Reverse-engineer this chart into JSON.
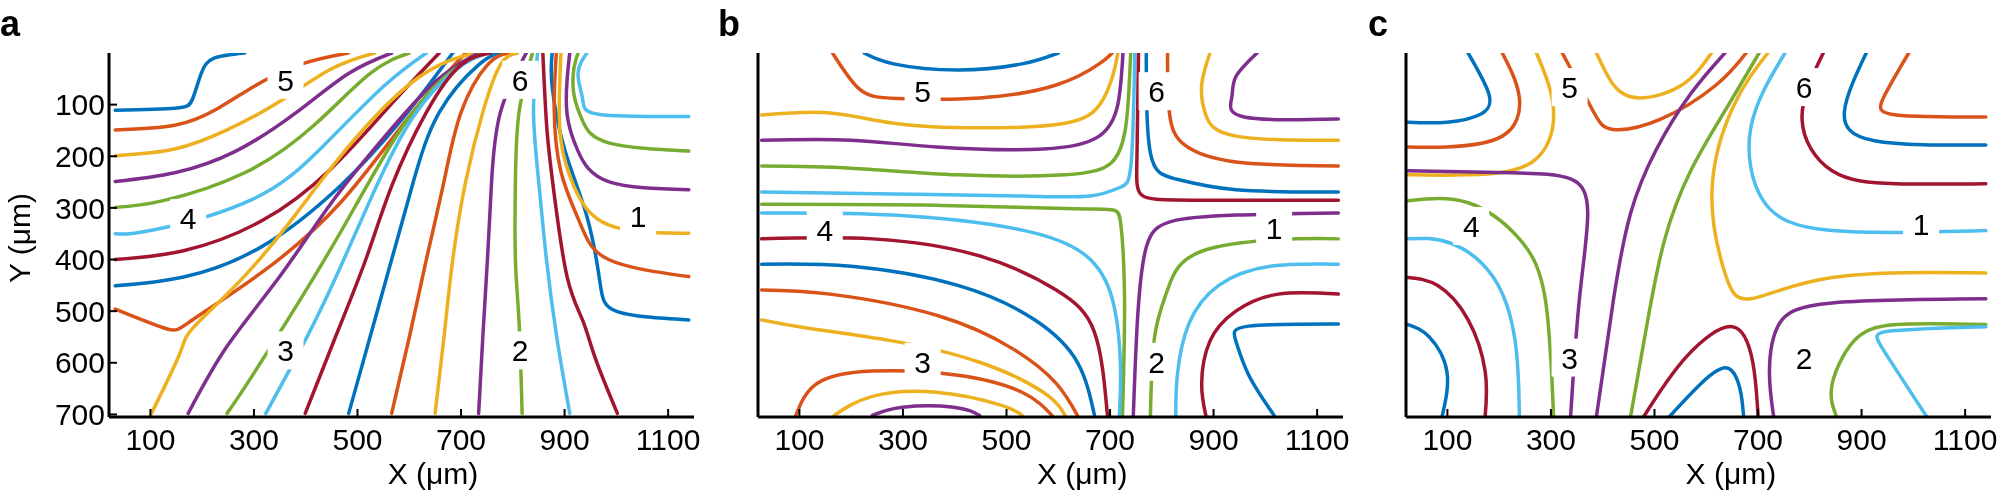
{
  "chart_data": [
    {
      "type": "line",
      "title": "a",
      "xlabel": "X (μm)",
      "ylabel": "Y (μm)",
      "xlim": [
        20,
        1150
      ],
      "ylim": [
        705,
        0
      ],
      "xticks": [
        100,
        300,
        500,
        700,
        900,
        1100
      ],
      "yticks": [
        100,
        200,
        300,
        400,
        500,
        600,
        700
      ],
      "annotations": [
        {
          "text": "5",
          "x": 361,
          "y": 52
        },
        {
          "text": "6",
          "x": 814,
          "y": 52
        },
        {
          "text": "4",
          "x": 173,
          "y": 320
        },
        {
          "text": "1",
          "x": 1042,
          "y": 316
        },
        {
          "text": "3",
          "x": 361,
          "y": 576
        },
        {
          "text": "2",
          "x": 814,
          "y": 576
        }
      ],
      "series": [
        {
          "color": "#0072bd",
          "x": [
            32,
            147,
            181,
            198,
            223,
            282
          ],
          "values": [
            111,
            107,
            90,
            40,
            10,
            0
          ]
        },
        {
          "color": "#d95319",
          "x": [
            32,
            147,
            231,
            315,
            399,
            482
          ],
          "values": [
            149,
            140,
            107,
            56,
            19,
            0
          ]
        },
        {
          "color": "#edb120",
          "x": [
            32,
            147,
            248,
            348,
            449,
            533
          ],
          "values": [
            199,
            186,
            149,
            95,
            31,
            0
          ]
        },
        {
          "color": "#7e2f8e",
          "x": [
            32,
            147,
            265,
            382,
            482,
            566
          ],
          "values": [
            249,
            232,
            190,
            115,
            40,
            0
          ]
        },
        {
          "color": "#77ac30",
          "x": [
            32,
            125,
            282,
            416,
            524,
            600
          ],
          "values": [
            299,
            286,
            232,
            140,
            40,
            0
          ]
        },
        {
          "color": "#4dbeee",
          "x": [
            32,
            110,
            298,
            432,
            550,
            633
          ],
          "values": [
            350,
            342,
            283,
            182,
            65,
            0
          ]
        },
        {
          "color": "#a2142f",
          "x": [
            32,
            164,
            315,
            449,
            566,
            658
          ],
          "values": [
            400,
            383,
            325,
            224,
            98,
            0
          ]
        },
        {
          "color": "#0072bd",
          "x": [
            32,
            164,
            315,
            466,
            583,
            684
          ],
          "values": [
            451,
            434,
            375,
            258,
            132,
            0
          ]
        },
        {
          "color": "#d95319",
          "x": [
            32,
            131,
            181,
            315,
            466,
            600,
            709
          ],
          "values": [
            496,
            534,
            517,
            425,
            291,
            123,
            0
          ]
        },
        {
          "color": "#edb120",
          "x": [
            102,
            156,
            181,
            265,
            365,
            482,
            617,
            726
          ],
          "values": [
            698,
            584,
            534,
            450,
            333,
            182,
            48,
            0
          ]
        },
        {
          "color": "#7e2f8e",
          "x": [
            173,
            248,
            349,
            449,
            550,
            650,
            734
          ],
          "values": [
            698,
            568,
            434,
            291,
            165,
            56,
            0
          ]
        },
        {
          "color": "#77ac30",
          "x": [
            248,
            300,
            416,
            499,
            583,
            667,
            742
          ],
          "values": [
            698,
            620,
            434,
            291,
            149,
            48,
            0
          ]
        },
        {
          "color": "#4dbeee",
          "x": [
            323,
            405,
            466,
            533,
            608,
            692,
            751
          ],
          "values": [
            698,
            545,
            417,
            266,
            123,
            31,
            0
          ]
        },
        {
          "color": "#a2142f",
          "x": [
            399,
            457,
            516,
            566,
            633,
            700,
            759
          ],
          "values": [
            698,
            551,
            400,
            258,
            115,
            23,
            0
          ]
        },
        {
          "color": "#0072bd",
          "x": [
            483,
            524,
            566,
            608,
            658,
            734,
            776
          ],
          "values": [
            698,
            551,
            400,
            249,
            115,
            23,
            0
          ]
        },
        {
          "color": "#d95319",
          "x": [
            566,
            600,
            633,
            667,
            700,
            751,
            792
          ],
          "values": [
            698,
            551,
            400,
            249,
            115,
            23,
            0
          ]
        },
        {
          "color": "#edb120",
          "x": [
            650,
            667,
            684,
            709,
            742,
            776,
            809
          ],
          "values": [
            698,
            551,
            400,
            249,
            115,
            23,
            0
          ]
        },
        {
          "color": "#7e2f8e",
          "x": [
            734,
            742,
            751,
            759,
            776,
            826
          ],
          "values": [
            698,
            551,
            400,
            249,
            115,
            0
          ]
        },
        {
          "color": "#77ac30",
          "x": [
            818,
            812,
            805,
            805,
            812,
            838
          ],
          "values": [
            698,
            520,
            400,
            249,
            115,
            0
          ]
        },
        {
          "color": "#4dbeee",
          "x": [
            910,
            885,
            865,
            850,
            840,
            848
          ],
          "values": [
            698,
            551,
            400,
            249,
            115,
            0
          ]
        },
        {
          "color": "#a2142f",
          "x": [
            1002,
            960,
            935,
            905,
            880,
            866,
            858
          ],
          "values": [
            698,
            593,
            518,
            434,
            274,
            149,
            0
          ]
        },
        {
          "color": "#0072bd",
          "x": [
            1140,
            1002,
            968,
            943,
            901,
            876,
            876
          ],
          "values": [
            517,
            501,
            442,
            316,
            190,
            65,
            0
          ]
        },
        {
          "color": "#d95319",
          "x": [
            1140,
            985,
            930,
            893,
            880,
            884
          ],
          "values": [
            433,
            400,
            330,
            230,
            110,
            0
          ]
        },
        {
          "color": "#edb120",
          "x": [
            1140,
            985,
            918,
            893,
            890,
            893
          ],
          "values": [
            349,
            333,
            258,
            170,
            80,
            0
          ]
        },
        {
          "color": "#7e2f8e",
          "x": [
            1140,
            985,
            926,
            905,
            905,
            910
          ],
          "values": [
            265,
            249,
            190,
            120,
            50,
            0
          ]
        },
        {
          "color": "#77ac30",
          "x": [
            1140,
            985,
            935,
            918,
            918,
            926
          ],
          "values": [
            190,
            174,
            132,
            80,
            30,
            0
          ]
        },
        {
          "color": "#4dbeee",
          "x": [
            1140,
            968,
            935,
            926,
            943
          ],
          "values": [
            123,
            119,
            90,
            40,
            0
          ]
        }
      ]
    },
    {
      "type": "line",
      "title": "b",
      "xlabel": "X (μm)",
      "xlim": [
        20,
        1150
      ],
      "ylim": [
        705,
        0
      ],
      "xticks": [
        100,
        300,
        500,
        700,
        900,
        1100
      ],
      "yticks": [
        100,
        200,
        300,
        400,
        500,
        600,
        700
      ],
      "tick_labels": "x",
      "annotations": [
        {
          "text": "5",
          "x": 338,
          "y": 74
        },
        {
          "text": "6",
          "x": 790,
          "y": 74
        },
        {
          "text": "4",
          "x": 149,
          "y": 343
        },
        {
          "text": "1",
          "x": 1017,
          "y": 339
        },
        {
          "text": "3",
          "x": 338,
          "y": 598
        },
        {
          "text": "2",
          "x": 790,
          "y": 598
        }
      ],
      "series": [
        {
          "color": "#0072bd",
          "x": [
            225,
            282,
            406,
            530,
            600
          ],
          "values": [
            0,
            21,
            33,
            21,
            0
          ]
        },
        {
          "color": "#d95319",
          "x": [
            164,
            216,
            290,
            448,
            596,
            679,
            704
          ],
          "values": [
            0,
            70,
            88,
            87,
            62,
            21,
            0
          ]
        },
        {
          "color": "#edb120",
          "x": [
            27,
            159,
            282,
            448,
            613,
            680,
            705,
            715
          ],
          "values": [
            120,
            116,
            136,
            145,
            136,
            100,
            45,
            0
          ]
        },
        {
          "color": "#7e2f8e",
          "x": [
            27,
            200,
            365,
            571,
            679,
            715,
            725
          ],
          "values": [
            169,
            169,
            182,
            186,
            161,
            100,
            0
          ]
        },
        {
          "color": "#77ac30",
          "x": [
            27,
            200,
            406,
            613,
            704,
            730,
            737,
            740
          ],
          "values": [
            219,
            223,
            236,
            236,
            211,
            145,
            62,
            0
          ]
        },
        {
          "color": "#4dbeee",
          "x": [
            27,
            282,
            530,
            662,
            720,
            741,
            748
          ],
          "values": [
            269,
            273,
            277,
            277,
            260,
            211,
            0
          ]
        },
        {
          "color": "#a2142f",
          "x": [
            1141,
            860,
            761,
            752,
            755
          ],
          "values": [
            285,
            285,
            275,
            200,
            0
          ]
        },
        {
          "color": "#0072bd",
          "x": [
            1141,
            943,
            827,
            778,
            770
          ],
          "values": [
            269,
            265,
            244,
            194,
            0
          ]
        },
        {
          "color": "#d95319",
          "x": [
            1141,
            943,
            844,
            815,
            811
          ],
          "values": [
            219,
            211,
            178,
            118,
            0
          ]
        },
        {
          "color": "#edb120",
          "x": [
            1141,
            943,
            885,
            877,
            893
          ],
          "values": [
            169,
            161,
            120,
            62,
            0
          ]
        },
        {
          "color": "#7e2f8e",
          "x": [
            1141,
            959,
            935,
            943,
            984
          ],
          "values": [
            128,
            124,
            87,
            46,
            0
          ]
        },
        {
          "color": "#77ac30",
          "x": [
            27,
            365,
            654,
            720,
            728,
            724
          ],
          "values": [
            293,
            295,
            302,
            326,
            475,
            702
          ]
        },
        {
          "color": "#4dbeee",
          "x": [
            27,
            282,
            530,
            654,
            704,
            720,
            718
          ],
          "values": [
            310,
            314,
            343,
            393,
            475,
            599,
            702
          ]
        },
        {
          "color": "#a2142f",
          "x": [
            27,
            241,
            448,
            596,
            670,
            695
          ],
          "values": [
            360,
            360,
            393,
            459,
            541,
            702
          ]
        },
        {
          "color": "#0072bd",
          "x": [
            27,
            200,
            406,
            555,
            637,
            670
          ],
          "values": [
            409,
            413,
            450,
            517,
            599,
            702
          ]
        },
        {
          "color": "#d95319",
          "x": [
            27,
            159,
            365,
            514,
            596,
            637
          ],
          "values": [
            459,
            467,
            508,
            574,
            640,
            702
          ]
        },
        {
          "color": "#edb120",
          "x": [
            27,
            117,
            282,
            448,
            571,
            613
          ],
          "values": [
            517,
            533,
            558,
            599,
            657,
            702
          ]
        },
        {
          "color": "#7e2f8e",
          "x": [
            1141,
            943,
            819,
            770,
            753,
            745
          ],
          "values": [
            310,
            314,
            326,
            376,
            517,
            702
          ]
        },
        {
          "color": "#77ac30",
          "x": [
            1141,
            1060,
            877,
            811,
            786,
            778
          ],
          "values": [
            360,
            360,
            384,
            459,
            550,
            702
          ]
        },
        {
          "color": "#4dbeee",
          "x": [
            1141,
            1009,
            910,
            852,
            830,
            827
          ],
          "values": [
            409,
            413,
            450,
            525,
            624,
            702
          ]
        },
        {
          "color": "#a2142f",
          "x": [
            1141,
            1025,
            943,
            893,
            877,
            885
          ],
          "values": [
            467,
            467,
            500,
            558,
            640,
            702
          ]
        },
        {
          "color": "#0072bd",
          "x": [
            1141,
            968,
            943,
            968,
            1017
          ],
          "values": [
            525,
            529,
            558,
            624,
            702
          ]
        },
        {
          "color": "#d95319",
          "x": [
            93,
            134,
            241,
            406,
            530,
            588
          ],
          "values": [
            702,
            640,
            616,
            624,
            657,
            702
          ]
        },
        {
          "color": "#edb120",
          "x": [
            167,
            241,
            365,
            489,
            530
          ],
          "values": [
            702,
            665,
            657,
            682,
            702
          ]
        },
        {
          "color": "#7e2f8e",
          "x": [
            241,
            299,
            398,
            448
          ],
          "values": [
            702,
            686,
            686,
            702
          ]
        }
      ]
    },
    {
      "type": "line",
      "title": "c",
      "xlabel": "X (μm)",
      "xlim": [
        20,
        1150
      ],
      "ylim": [
        705,
        0
      ],
      "xticks": [
        100,
        300,
        500,
        700,
        900,
        1100
      ],
      "yticks": [
        100,
        200,
        300,
        400,
        500,
        600,
        700
      ],
      "tick_labels": "x",
      "annotations": [
        {
          "text": "5",
          "x": 336,
          "y": 66
        },
        {
          "text": "6",
          "x": 789,
          "y": 66
        },
        {
          "text": "4",
          "x": 146,
          "y": 335
        },
        {
          "text": "1",
          "x": 1015,
          "y": 331
        },
        {
          "text": "3",
          "x": 336,
          "y": 590
        },
        {
          "text": "2",
          "x": 789,
          "y": 590
        }
      ],
      "series": [
        {
          "color": "#0072bd",
          "x": [
            140,
            180,
            165,
            99,
            24
          ],
          "values": [
            0,
            79,
            118,
            134,
            134
          ]
        },
        {
          "color": "#d95319",
          "x": [
            206,
            239,
            206,
            99,
            24
          ],
          "values": [
            0,
            87,
            161,
            182,
            182
          ]
        },
        {
          "color": "#edb120",
          "x": [
            272,
            305,
            264,
            140,
            24
          ],
          "values": [
            0,
            112,
            211,
            236,
            236
          ]
        },
        {
          "color": "#7e2f8e",
          "x": [
            24,
            223,
            338,
            371,
            355,
            338
          ],
          "values": [
            228,
            232,
            244,
            310,
            476,
            703
          ]
        },
        {
          "color": "#77ac30",
          "x": [
            24,
            140,
            239,
            289,
            305
          ],
          "values": [
            286,
            290,
            360,
            476,
            703
          ]
        },
        {
          "color": "#4dbeee",
          "x": [
            24,
            105,
            189,
            231,
            239
          ],
          "values": [
            360,
            368,
            435,
            559,
            703
          ]
        },
        {
          "color": "#a2142f",
          "x": [
            24,
            82,
            140,
            173,
            173
          ],
          "values": [
            435,
            451,
            517,
            617,
            703
          ]
        },
        {
          "color": "#0072bd",
          "x": [
            24,
            65,
            99,
            90
          ],
          "values": [
            526,
            550,
            617,
            703
          ]
        },
        {
          "color": "#d95319",
          "x": [
            322,
            380,
            420,
            512,
            619,
            677
          ],
          "values": [
            0,
            110,
            148,
            128,
            62,
            0
          ]
        },
        {
          "color": "#edb120",
          "x": [
            388,
            421,
            471,
            553,
            610
          ],
          "values": [
            0,
            62,
            87,
            62,
            0
          ]
        },
        {
          "color": "#7e2f8e",
          "x": [
            388,
            421,
            454,
            504,
            570,
            636
          ],
          "values": [
            703,
            476,
            310,
            186,
            79,
            0
          ]
        },
        {
          "color": "#77ac30",
          "x": [
            454,
            487,
            520,
            570,
            636,
            702
          ],
          "values": [
            703,
            517,
            360,
            228,
            112,
            0
          ]
        },
        {
          "color": "#4dbeee",
          "x": [
            752,
            686,
            710,
            843,
            1140
          ],
          "values": [
            0,
            145,
            286,
            344,
            344
          ]
        },
        {
          "color": "#a2142f",
          "x": [
            826,
            785,
            843,
            967,
            1140
          ],
          "values": [
            0,
            128,
            228,
            253,
            253
          ]
        },
        {
          "color": "#0072bd",
          "x": [
            909,
            867,
            925,
            1140
          ],
          "values": [
            0,
            112,
            170,
            178
          ]
        },
        {
          "color": "#d95319",
          "x": [
            991,
            942,
            967,
            1140
          ],
          "values": [
            0,
            87,
            120,
            124
          ]
        },
        {
          "color": "#edb120",
          "x": [
            1140,
            843,
            686,
            636,
            611,
            652,
            719
          ],
          "values": [
            426,
            435,
            476,
            426,
            269,
            104,
            0
          ]
        },
        {
          "color": "#7e2f8e",
          "x": [
            1140,
            843,
            740,
            722,
            730
          ],
          "values": [
            476,
            484,
            526,
            617,
            703
          ]
        },
        {
          "color": "#77ac30",
          "x": [
            1140,
            967,
            884,
            843,
            851
          ],
          "values": [
            526,
            526,
            559,
            642,
            703
          ]
        },
        {
          "color": "#4dbeee",
          "x": [
            1140,
            958,
            942,
            1025
          ],
          "values": [
            530,
            538,
            575,
            703
          ]
        },
        {
          "color": "#a2142f",
          "x": [
            480,
            560,
            650,
            690,
            700
          ],
          "values": [
            703,
            590,
            530,
            600,
            703
          ]
        },
        {
          "color": "#0072bd",
          "x": [
            530,
            590,
            640,
            665,
            672
          ],
          "values": [
            703,
            640,
            610,
            650,
            703
          ]
        }
      ]
    }
  ]
}
